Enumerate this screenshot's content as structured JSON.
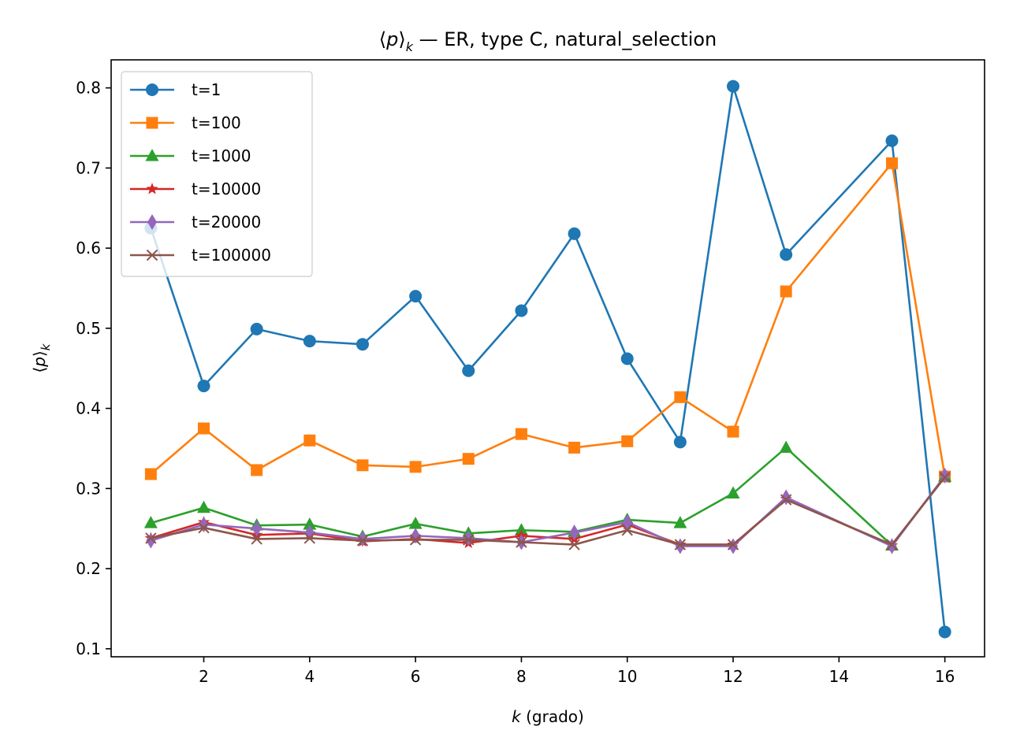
{
  "chart_data": {
    "type": "line",
    "title": "⟨p⟩k — ER, type C, natural_selection",
    "title_parts": {
      "left": "⟨",
      "var": "p",
      "right": "⟩",
      "sub": "k",
      "rest": " — ER, type C, natural_selection"
    },
    "xlabel": "k (grado)",
    "xlabel_parts": {
      "var": "k",
      "rest": " (grado)"
    },
    "ylabel": "⟨p⟩k",
    "ylabel_parts": {
      "left": "⟨",
      "var": "p",
      "right": "⟩",
      "sub": "k"
    },
    "xlim": [
      0.25,
      16.75
    ],
    "ylim": [
      0.09,
      0.835
    ],
    "xticks": [
      2,
      4,
      6,
      8,
      10,
      12,
      14,
      16
    ],
    "yticks": [
      0.1,
      0.2,
      0.3,
      0.4,
      0.5,
      0.6,
      0.7,
      0.8
    ],
    "xtick_labels": [
      "2",
      "4",
      "6",
      "8",
      "10",
      "12",
      "14",
      "16"
    ],
    "ytick_labels": [
      "0.1",
      "0.2",
      "0.3",
      "0.4",
      "0.5",
      "0.6",
      "0.7",
      "0.8"
    ],
    "grid": false,
    "legend_position": "upper-left",
    "x": [
      1,
      2,
      3,
      4,
      5,
      6,
      7,
      8,
      9,
      10,
      11,
      12,
      13,
      15,
      16
    ],
    "series": [
      {
        "name": "t=1",
        "color": "#1f77b4",
        "marker": "circle",
        "values": [
          0.625,
          0.428,
          0.499,
          0.484,
          0.48,
          0.54,
          0.447,
          0.522,
          0.618,
          0.462,
          0.358,
          0.802,
          0.592,
          0.734,
          0.121
        ]
      },
      {
        "name": "t=100",
        "color": "#ff7f0e",
        "marker": "square",
        "values": [
          0.318,
          0.375,
          0.323,
          0.36,
          0.329,
          0.327,
          0.337,
          0.368,
          0.351,
          0.359,
          0.414,
          0.371,
          0.546,
          0.706,
          0.315
        ]
      },
      {
        "name": "t=1000",
        "color": "#2ca02c",
        "marker": "triangle",
        "values": [
          0.257,
          0.276,
          0.254,
          0.255,
          0.24,
          0.256,
          0.244,
          0.248,
          0.246,
          0.261,
          0.257,
          0.294,
          0.351,
          0.229,
          0.315
        ]
      },
      {
        "name": "t=10000",
        "color": "#d62728",
        "marker": "star",
        "values": [
          0.238,
          0.258,
          0.242,
          0.244,
          0.234,
          0.237,
          0.232,
          0.241,
          0.237,
          0.255,
          0.23,
          0.23,
          0.287,
          0.229,
          0.315
        ]
      },
      {
        "name": "t=20000",
        "color": "#9467bd",
        "marker": "thin-diamond",
        "values": [
          0.235,
          0.255,
          0.25,
          0.245,
          0.237,
          0.241,
          0.238,
          0.233,
          0.245,
          0.258,
          0.228,
          0.228,
          0.289,
          0.228,
          0.316
        ]
      },
      {
        "name": "t=100000",
        "color": "#8c564b",
        "marker": "x",
        "values": [
          0.238,
          0.251,
          0.237,
          0.238,
          0.235,
          0.236,
          0.236,
          0.233,
          0.23,
          0.248,
          0.23,
          0.23,
          0.286,
          0.23,
          0.314
        ]
      }
    ]
  }
}
